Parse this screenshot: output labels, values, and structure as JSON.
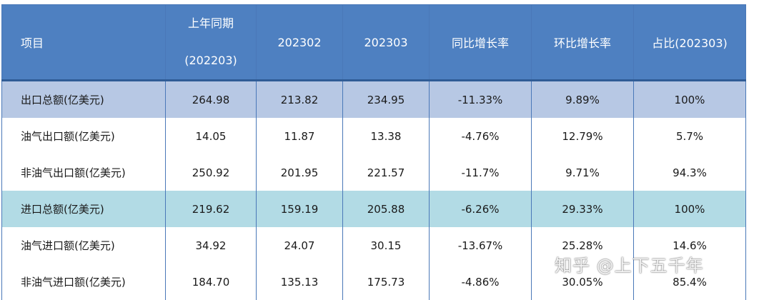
{
  "table": {
    "headers": {
      "item": "项目",
      "prev_year_line1": "上年同期",
      "prev_year_line2": "(202203)",
      "m202302": "202302",
      "m202303": "202303",
      "yoy": "同比增长率",
      "mom": "环比增长率",
      "share": "占比(202303)"
    },
    "rows": [
      {
        "item": "出口总额(亿美元)",
        "prev_year": "264.98",
        "m202302": "213.82",
        "m202303": "234.95",
        "yoy": "-11.33%",
        "mom": "9.89%",
        "share": "100%"
      },
      {
        "item": "油气出口额(亿美元)",
        "prev_year": "14.05",
        "m202302": "11.87",
        "m202303": "13.38",
        "yoy": "-4.76%",
        "mom": "12.79%",
        "share": "5.7%"
      },
      {
        "item": "非油气出口额(亿美元)",
        "prev_year": "250.92",
        "m202302": "201.95",
        "m202303": "221.57",
        "yoy": "-11.7%",
        "mom": "9.71%",
        "share": "94.3%"
      },
      {
        "item": "进口总额(亿美元)",
        "prev_year": "219.62",
        "m202302": "159.19",
        "m202303": "205.88",
        "yoy": "-6.26%",
        "mom": "29.33%",
        "share": "100%"
      },
      {
        "item": "油气进口额(亿美元)",
        "prev_year": "34.92",
        "m202302": "24.07",
        "m202303": "30.15",
        "yoy": "-13.67%",
        "mom": "25.28%",
        "share": "14.6%"
      },
      {
        "item": "非油气进口额(亿美元)",
        "prev_year": "184.70",
        "m202302": "135.13",
        "m202303": "175.73",
        "yoy": "-4.86%",
        "mom": "30.05%",
        "share": "85.4%"
      }
    ]
  },
  "watermark": "知乎 @上下五千年",
  "colors": {
    "header_bg": "#4e80c1",
    "export_total_bg": "#b7c8e4",
    "import_total_bg": "#b2dbe5"
  }
}
